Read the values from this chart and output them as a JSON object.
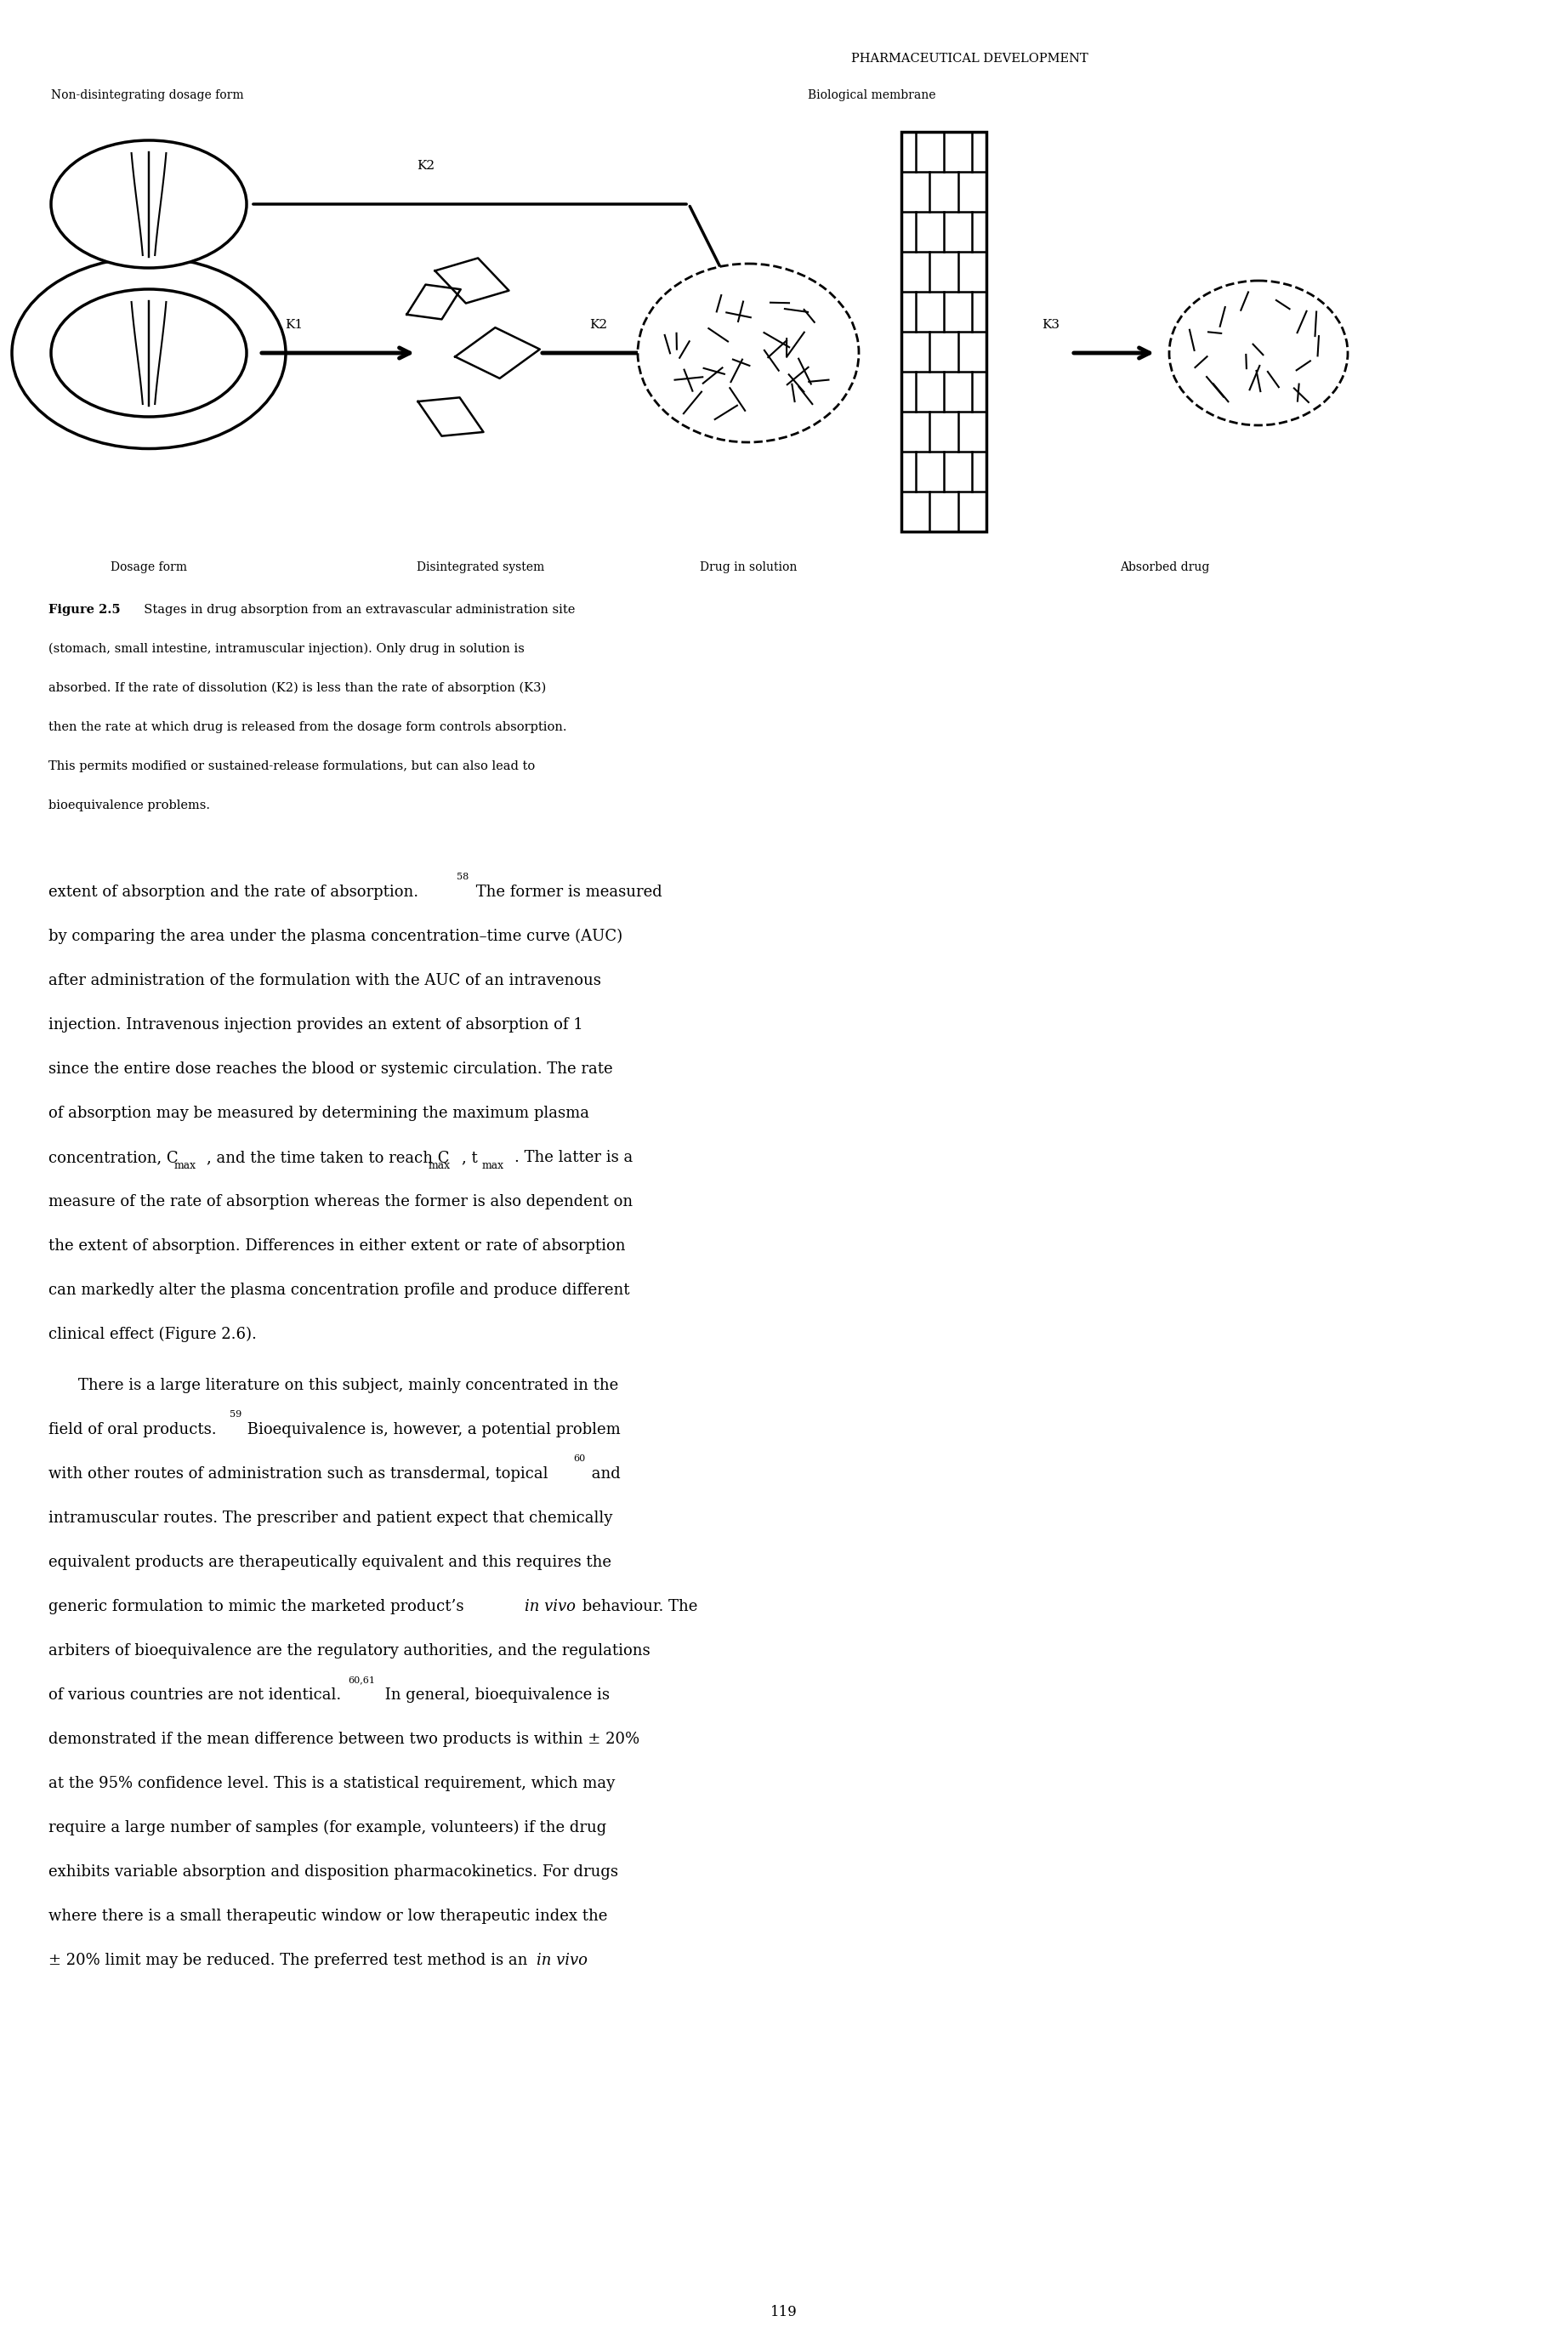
{
  "header_text": "PHARMACEUTICAL DEVELOPMENT",
  "figure_label": "Non-disintegrating dosage form",
  "biological_membrane_label": "Biological membrane",
  "bottom_labels": [
    "Dosage form",
    "Disintegrated system",
    "Drug in solution",
    "Absorbed drug"
  ],
  "figure_caption_bold": "Figure 2.5",
  "figure_caption": "  Stages in drug absorption from an extravascular administration site (stomach, small intestine, intramuscular injection). Only drug in solution is absorbed. If the rate of dissolution (K2) is less than the rate of absorption (K3) then the rate at which drug is released from the dosage form controls absorption. This permits modified or sustained-release formulations, but can also lead to bioequivalence problems.",
  "page_number": "119",
  "bg_color": "#ffffff",
  "text_color": "#000000",
  "fig_width": 18.44,
  "fig_height": 27.63
}
